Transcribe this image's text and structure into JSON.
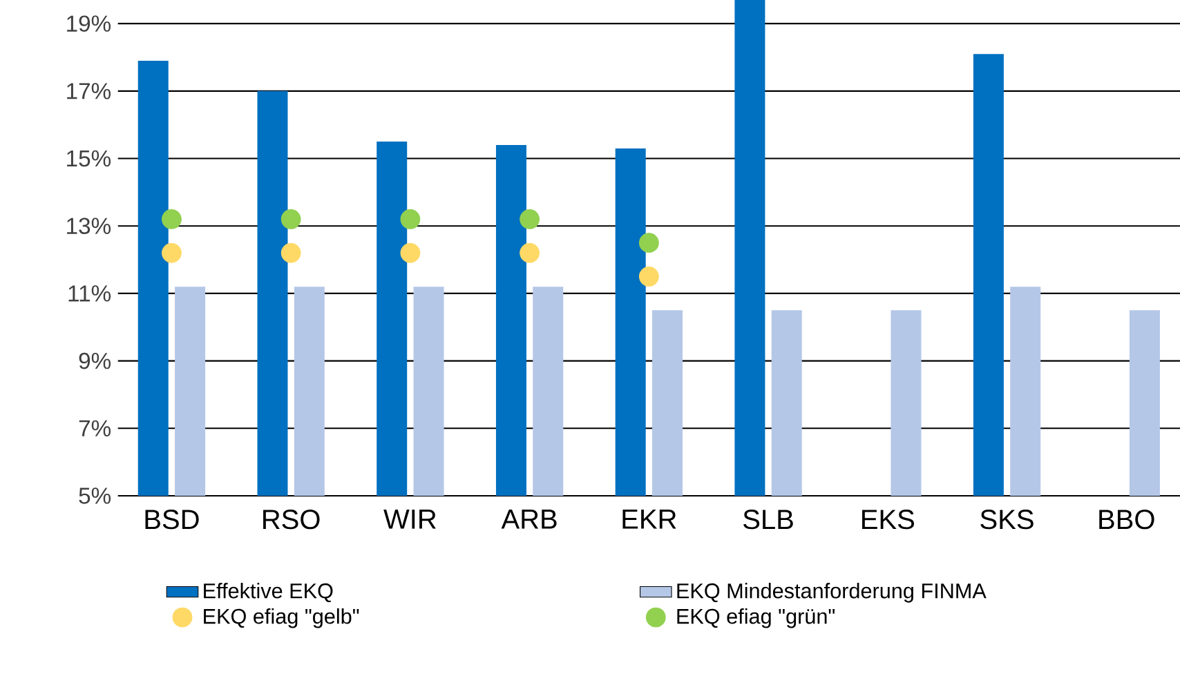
{
  "chart_data": {
    "type": "bar",
    "categories": [
      "BSD",
      "RSO",
      "WIR",
      "ARB",
      "EKR",
      "SLB",
      "EKS",
      "SKS",
      "BBO"
    ],
    "series": [
      {
        "name": "Effektive EKQ",
        "color": "#0070c0",
        "values": [
          17.9,
          17.0,
          15.5,
          15.4,
          15.3,
          19.7,
          5.0,
          18.1,
          5.0
        ]
      },
      {
        "name": "EKQ Mindestanforderung FINMA",
        "color": "#b4c7e7",
        "values": [
          11.2,
          11.2,
          11.2,
          11.2,
          10.5,
          10.5,
          10.5,
          11.2,
          10.5
        ]
      },
      {
        "name": "EKQ efiag \"gelb\"",
        "type": "scatter",
        "color": "#ffd966",
        "values": [
          12.2,
          12.2,
          12.2,
          12.2,
          11.5,
          null,
          null,
          null,
          null
        ]
      },
      {
        "name": "EKQ efiag \"grün\"",
        "type": "scatter",
        "color": "#92d050",
        "values": [
          13.2,
          13.2,
          13.2,
          13.2,
          12.5,
          null,
          null,
          null,
          null
        ]
      }
    ],
    "ylim": [
      5,
      19.7
    ],
    "yticks": [
      {
        "value": 5,
        "label": "5%"
      },
      {
        "value": 7,
        "label": "7%"
      },
      {
        "value": 9,
        "label": "9%"
      },
      {
        "value": 11,
        "label": "11%"
      },
      {
        "value": 13,
        "label": "13%"
      },
      {
        "value": 15,
        "label": "15%"
      },
      {
        "value": 17,
        "label": "17%"
      },
      {
        "value": 19,
        "label": "19%"
      }
    ],
    "grid": "y",
    "legend": "bottom"
  }
}
